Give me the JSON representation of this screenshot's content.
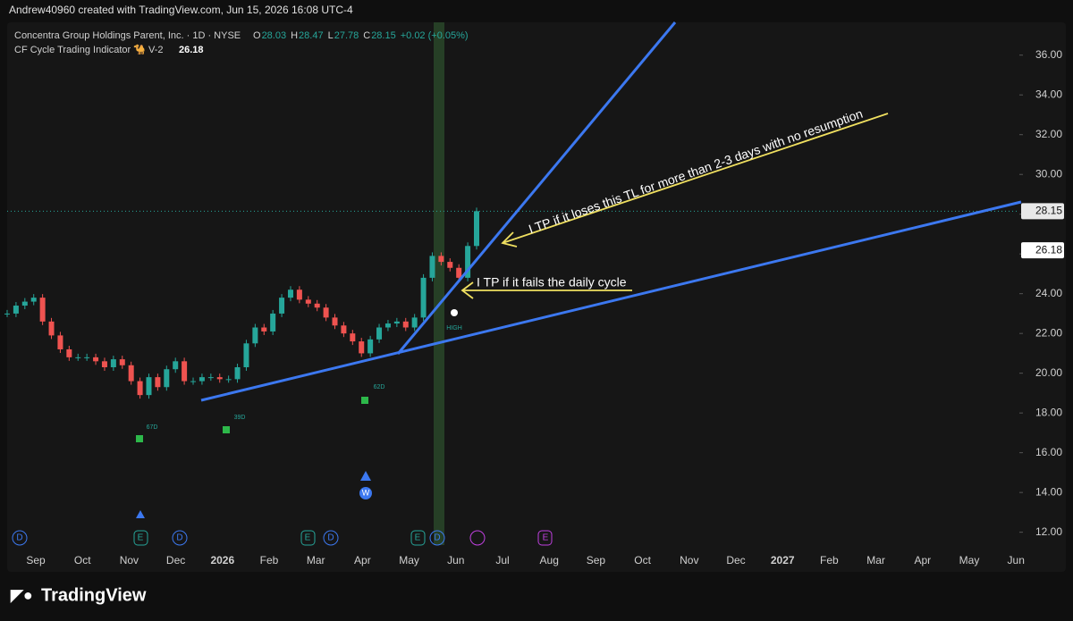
{
  "header": {
    "watermark": "Andrew40960 created with TradingView.com, Jun 15, 2026 16:08 UTC-4"
  },
  "legend": {
    "name": "Concentra Group Holdings Parent, Inc. · 1D · NYSE",
    "fields": [
      {
        "label": "O",
        "value": "28.03"
      },
      {
        "label": "H",
        "value": "28.47"
      },
      {
        "label": "L",
        "value": "27.78"
      },
      {
        "label": "C",
        "value": "28.15"
      }
    ],
    "change": "+0.02 (+0.05%)"
  },
  "indicator": {
    "name": "CF Cycle Trading Indicator 🐪 V-2",
    "value": "26.18"
  },
  "chart_data": {
    "type": "candlestick",
    "closes": [
      23.0,
      23.4,
      23.6,
      23.8,
      22.6,
      21.9,
      21.2,
      20.8,
      20.8,
      20.8,
      20.6,
      20.3,
      20.7,
      20.4,
      19.6,
      18.9,
      19.8,
      19.3,
      20.2,
      20.6,
      19.6,
      19.6,
      19.8,
      19.8,
      19.7,
      19.7,
      20.3,
      21.5,
      22.3,
      22.1,
      23.0,
      23.8,
      24.2,
      23.7,
      23.5,
      23.3,
      22.8,
      22.4,
      22.0,
      21.6,
      21.0,
      21.7,
      22.3,
      22.5,
      22.6,
      22.3,
      22.8,
      24.8,
      25.9,
      25.6,
      25.3,
      24.8,
      26.4,
      28.15
    ],
    "up_color": "#26a69a",
    "down_color": "#ef5350",
    "ylim": [
      11.4,
      37.65
    ],
    "yticks": [
      {
        "value": 12,
        "label": "12.00"
      },
      {
        "value": 14,
        "label": "14.00"
      },
      {
        "value": 16,
        "label": "16.00"
      },
      {
        "value": 18,
        "label": "18.00"
      },
      {
        "value": 20,
        "label": "20.00"
      },
      {
        "value": 22,
        "label": "22.00"
      },
      {
        "value": 24,
        "label": "24.00"
      },
      {
        "value": 26,
        "label": "26.00"
      },
      {
        "value": 28,
        "label": "28.00"
      },
      {
        "value": 30,
        "label": "30.00"
      },
      {
        "value": 32,
        "label": "32.00"
      },
      {
        "value": 34,
        "label": "34.00"
      },
      {
        "value": 36,
        "label": "36.00"
      }
    ],
    "categories": [
      "Sep",
      "Oct",
      "Nov",
      "Dec",
      "2026",
      "Feb",
      "Mar",
      "Apr",
      "May",
      "Jun",
      "Jul",
      "Aug",
      "Sep",
      "Oct",
      "Nov",
      "Dec",
      "2027",
      "Feb",
      "Mar",
      "Apr",
      "May",
      "Jun"
    ],
    "last_price": {
      "value": 28.15,
      "label": "28.15"
    },
    "indicator_price": 26.18
  },
  "annotations": [
    "I TP if it loses this TL for more than 2-3 days with no resumption",
    "I TP if it fails the daily cycle"
  ],
  "events": [
    "D",
    "E",
    "W",
    "HIGH",
    "67D",
    "39D",
    "62D"
  ],
  "footer": {
    "brand": "TradingView"
  }
}
